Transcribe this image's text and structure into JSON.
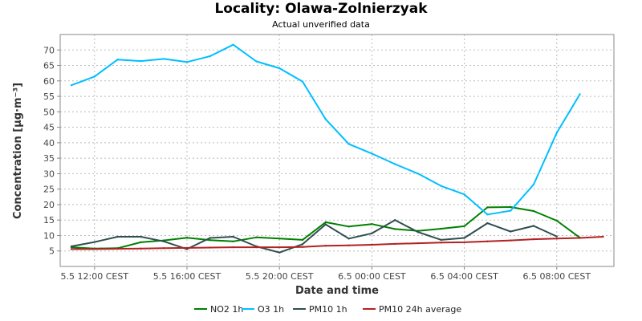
{
  "chart_data": {
    "type": "line",
    "title": "Locality: Olawa-Zolnierzyak",
    "subtitle": "Actual unverified data",
    "xlabel": "Date and time",
    "ylabel": "Concentration [µg·m⁻³]",
    "ylim": [
      0,
      75
    ],
    "yticks": [
      5,
      10,
      15,
      20,
      25,
      30,
      35,
      40,
      45,
      50,
      55,
      60,
      65,
      70
    ],
    "x": [
      "5.5 11:00",
      "5.5 12:00",
      "5.5 13:00",
      "5.5 14:00",
      "5.5 15:00",
      "5.5 16:00",
      "5.5 17:00",
      "5.5 18:00",
      "5.5 19:00",
      "5.5 20:00",
      "5.5 21:00",
      "5.5 22:00",
      "5.5 23:00",
      "6.5 00:00",
      "6.5 01:00",
      "6.5 02:00",
      "6.5 03:00",
      "6.5 04:00",
      "6.5 05:00",
      "6.5 06:00",
      "6.5 07:00",
      "6.5 08:00",
      "6.5 09:00",
      "6.5 10:00"
    ],
    "xticks": [
      {
        "label": "5.5 12:00 CEST",
        "index": 1
      },
      {
        "label": "5.5 16:00 CEST",
        "index": 5
      },
      {
        "label": "5.5 20:00 CEST",
        "index": 9
      },
      {
        "label": "6.5 00:00 CEST",
        "index": 13
      },
      {
        "label": "6.5 04:00 CEST",
        "index": 17
      },
      {
        "label": "6.5 08:00 CEST",
        "index": 21
      }
    ],
    "grid": true,
    "legend_position": "bottom",
    "series": [
      {
        "name": "NO2 1h",
        "color": "#008000",
        "values": [
          6.2,
          5.8,
          5.9,
          7.8,
          8.4,
          9.3,
          8.5,
          8.1,
          9.4,
          9.0,
          8.6,
          14.3,
          12.9,
          13.7,
          12.1,
          11.5,
          12.2,
          13.0,
          19.1,
          19.2,
          17.9,
          14.8,
          9.3,
          null
        ]
      },
      {
        "name": "O3 1h",
        "color": "#00bfff",
        "values": [
          58.6,
          61.4,
          66.9,
          66.4,
          67.1,
          66.1,
          68.0,
          71.7,
          66.3,
          64.1,
          59.8,
          47.6,
          39.6,
          36.5,
          33.1,
          30.0,
          26.0,
          23.3,
          16.8,
          18.0,
          26.5,
          43.2,
          55.7,
          null
        ]
      },
      {
        "name": "PM10 1h",
        "color": "#2f4f4f",
        "values": [
          6.5,
          7.9,
          9.6,
          9.6,
          8.1,
          5.6,
          9.2,
          9.6,
          6.5,
          4.5,
          7.2,
          13.6,
          9.0,
          10.7,
          15.0,
          11.1,
          8.6,
          9.2,
          14.0,
          11.3,
          13.1,
          9.7,
          null,
          null
        ]
      },
      {
        "name": "PM10 24h average",
        "color": "#b22222",
        "values": [
          5.6,
          5.6,
          5.7,
          5.8,
          5.9,
          6.0,
          6.1,
          6.2,
          6.2,
          6.2,
          6.3,
          6.7,
          6.8,
          7.0,
          7.3,
          7.5,
          7.7,
          7.8,
          8.1,
          8.4,
          8.8,
          9.0,
          9.2,
          9.6
        ]
      }
    ]
  }
}
